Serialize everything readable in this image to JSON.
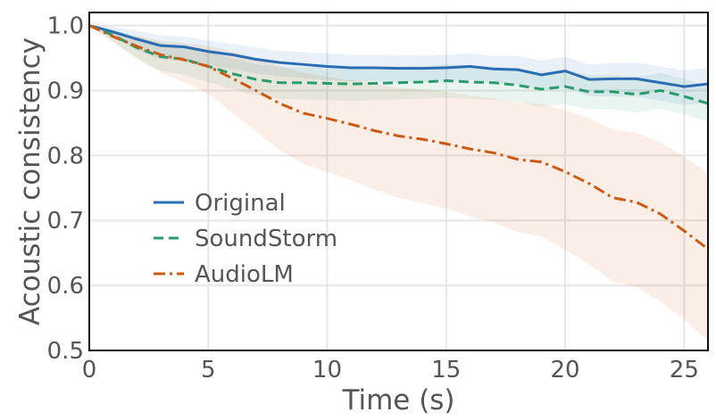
{
  "chart_data": {
    "type": "line",
    "xlabel": "Time (s)",
    "ylabel": "Acoustic consistency",
    "xlim": [
      0,
      26
    ],
    "ylim": [
      0.5,
      1.02
    ],
    "xticks": [
      0,
      5,
      10,
      15,
      20,
      25
    ],
    "yticks": [
      0.5,
      0.6,
      0.7,
      0.8,
      0.9,
      1.0
    ],
    "xtick_labels": [
      "0",
      "5",
      "10",
      "15",
      "20",
      "25"
    ],
    "ytick_labels": [
      "0.5",
      "0.6",
      "0.7",
      "0.8",
      "0.9",
      "1.0"
    ],
    "grid": true,
    "legend": "middle-left",
    "x": [
      0,
      1,
      2,
      3,
      4,
      5,
      6,
      7,
      8,
      9,
      10,
      11,
      12,
      13,
      14,
      15,
      16,
      17,
      18,
      19,
      20,
      21,
      22,
      23,
      24,
      25,
      26
    ],
    "series": [
      {
        "name": "Original",
        "color": "#2b6db2",
        "dash": "solid",
        "values": [
          1.0,
          0.99,
          0.979,
          0.969,
          0.967,
          0.96,
          0.955,
          0.948,
          0.943,
          0.94,
          0.937,
          0.935,
          0.935,
          0.934,
          0.934,
          0.935,
          0.937,
          0.933,
          0.932,
          0.924,
          0.93,
          0.917,
          0.918,
          0.918,
          0.912,
          0.906,
          0.91
        ],
        "band_lower": [
          1.0,
          0.982,
          0.962,
          0.948,
          0.945,
          0.938,
          0.933,
          0.926,
          0.922,
          0.919,
          0.916,
          0.914,
          0.914,
          0.913,
          0.913,
          0.914,
          0.916,
          0.911,
          0.909,
          0.9,
          0.905,
          0.891,
          0.891,
          0.89,
          0.884,
          0.878,
          0.88
        ],
        "band_upper": [
          1.0,
          0.998,
          0.992,
          0.985,
          0.983,
          0.977,
          0.972,
          0.966,
          0.961,
          0.959,
          0.957,
          0.955,
          0.955,
          0.954,
          0.954,
          0.955,
          0.957,
          0.953,
          0.953,
          0.946,
          0.952,
          0.94,
          0.942,
          0.943,
          0.937,
          0.931,
          0.935
        ]
      },
      {
        "name": "SoundStorm",
        "color": "#2a9b6c",
        "dash": "dashed",
        "values": [
          1.0,
          0.985,
          0.966,
          0.952,
          0.948,
          0.937,
          0.926,
          0.917,
          0.912,
          0.912,
          0.911,
          0.91,
          0.911,
          0.912,
          0.913,
          0.915,
          0.913,
          0.912,
          0.908,
          0.902,
          0.906,
          0.898,
          0.898,
          0.894,
          0.9,
          0.891,
          0.88
        ],
        "band_lower": [
          1.0,
          0.975,
          0.948,
          0.93,
          0.924,
          0.913,
          0.902,
          0.893,
          0.887,
          0.886,
          0.885,
          0.884,
          0.885,
          0.886,
          0.887,
          0.889,
          0.887,
          0.886,
          0.882,
          0.875,
          0.879,
          0.871,
          0.871,
          0.866,
          0.872,
          0.863,
          0.852
        ],
        "band_upper": [
          1.0,
          0.994,
          0.983,
          0.973,
          0.97,
          0.96,
          0.95,
          0.941,
          0.936,
          0.936,
          0.936,
          0.935,
          0.936,
          0.937,
          0.938,
          0.94,
          0.938,
          0.937,
          0.933,
          0.928,
          0.932,
          0.924,
          0.924,
          0.921,
          0.927,
          0.918,
          0.907
        ]
      },
      {
        "name": "AudioLM",
        "color": "#cc5a12",
        "dash": "dashdot",
        "values": [
          1.0,
          0.983,
          0.968,
          0.955,
          0.947,
          0.937,
          0.919,
          0.9,
          0.88,
          0.865,
          0.857,
          0.848,
          0.838,
          0.83,
          0.825,
          0.818,
          0.81,
          0.804,
          0.794,
          0.79,
          0.775,
          0.757,
          0.735,
          0.728,
          0.71,
          0.684,
          0.656
        ],
        "band_lower": [
          1.0,
          0.975,
          0.95,
          0.928,
          0.912,
          0.895,
          0.866,
          0.837,
          0.808,
          0.787,
          0.775,
          0.762,
          0.747,
          0.735,
          0.727,
          0.718,
          0.706,
          0.697,
          0.682,
          0.675,
          0.655,
          0.632,
          0.606,
          0.597,
          0.576,
          0.547,
          0.515
        ],
        "band_upper": [
          1.0,
          0.99,
          0.984,
          0.976,
          0.973,
          0.968,
          0.96,
          0.95,
          0.938,
          0.927,
          0.921,
          0.916,
          0.91,
          0.904,
          0.902,
          0.898,
          0.892,
          0.888,
          0.881,
          0.879,
          0.87,
          0.857,
          0.84,
          0.835,
          0.82,
          0.798,
          0.773
        ]
      }
    ]
  }
}
